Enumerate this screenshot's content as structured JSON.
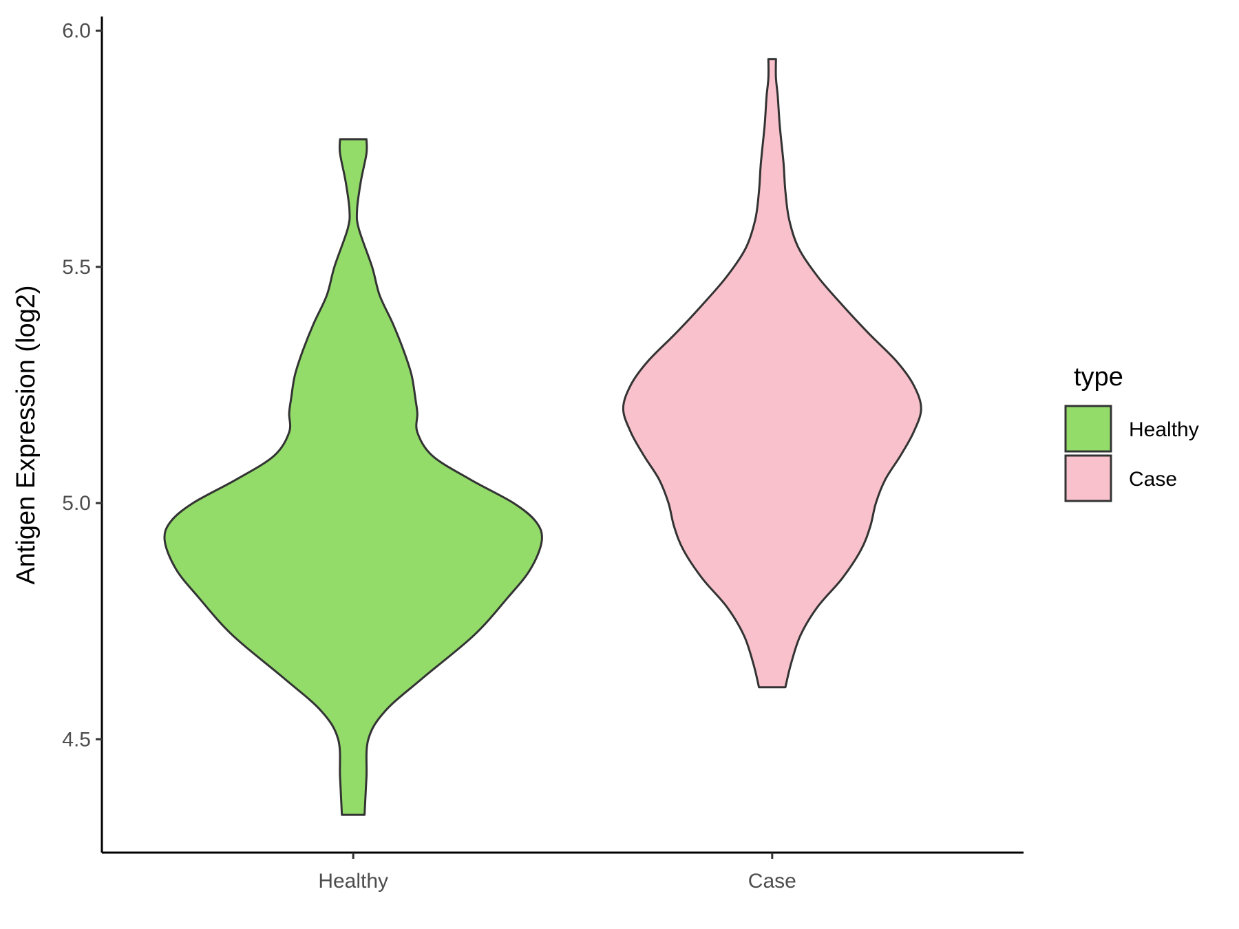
{
  "chart_data": {
    "type": "violin",
    "title": "",
    "xlabel": "",
    "ylabel": "Antigen Expression (log2)",
    "ylim": [
      4.26,
      6.03
    ],
    "yticks": [
      4.5,
      5.0,
      5.5,
      6.0
    ],
    "ytick_labels": [
      "4.5",
      "5.0",
      "5.5",
      "6.0"
    ],
    "grid": false,
    "categories": [
      "Healthy",
      "Case"
    ],
    "legend": {
      "title": "type",
      "placement": "right",
      "entries": [
        {
          "label": "Healthy",
          "color": "#93dc6a"
        },
        {
          "label": "Case",
          "color": "#f8c1cb"
        }
      ]
    },
    "series": [
      {
        "name": "Healthy",
        "color": "#93dc6a",
        "min": 4.34,
        "max": 5.77,
        "density_profile": [
          {
            "y": 4.34,
            "w": 0.06
          },
          {
            "y": 4.42,
            "w": 0.07
          },
          {
            "y": 4.5,
            "w": 0.08
          },
          {
            "y": 4.56,
            "w": 0.17
          },
          {
            "y": 4.63,
            "w": 0.37
          },
          {
            "y": 4.72,
            "w": 0.64
          },
          {
            "y": 4.8,
            "w": 0.82
          },
          {
            "y": 4.86,
            "w": 0.94
          },
          {
            "y": 4.92,
            "w": 1.0
          },
          {
            "y": 4.96,
            "w": 0.97
          },
          {
            "y": 5.0,
            "w": 0.85
          },
          {
            "y": 5.05,
            "w": 0.62
          },
          {
            "y": 5.1,
            "w": 0.42
          },
          {
            "y": 5.15,
            "w": 0.34
          },
          {
            "y": 5.19,
            "w": 0.34
          },
          {
            "y": 5.22,
            "w": 0.33
          },
          {
            "y": 5.27,
            "w": 0.31
          },
          {
            "y": 5.32,
            "w": 0.27
          },
          {
            "y": 5.38,
            "w": 0.21
          },
          {
            "y": 5.44,
            "w": 0.14
          },
          {
            "y": 5.5,
            "w": 0.1
          },
          {
            "y": 5.58,
            "w": 0.03
          },
          {
            "y": 5.62,
            "w": 0.02
          },
          {
            "y": 5.68,
            "w": 0.04
          },
          {
            "y": 5.74,
            "w": 0.07
          },
          {
            "y": 5.77,
            "w": 0.07
          }
        ]
      },
      {
        "name": "Case",
        "color": "#f8c1cb",
        "min": 4.61,
        "max": 5.94,
        "density_profile": [
          {
            "y": 4.61,
            "w": 0.07
          },
          {
            "y": 4.66,
            "w": 0.1
          },
          {
            "y": 4.72,
            "w": 0.15
          },
          {
            "y": 4.78,
            "w": 0.24
          },
          {
            "y": 4.84,
            "w": 0.37
          },
          {
            "y": 4.9,
            "w": 0.47
          },
          {
            "y": 4.95,
            "w": 0.52
          },
          {
            "y": 5.0,
            "w": 0.55
          },
          {
            "y": 5.05,
            "w": 0.6
          },
          {
            "y": 5.1,
            "w": 0.68
          },
          {
            "y": 5.15,
            "w": 0.75
          },
          {
            "y": 5.2,
            "w": 0.79
          },
          {
            "y": 5.25,
            "w": 0.75
          },
          {
            "y": 5.3,
            "w": 0.66
          },
          {
            "y": 5.36,
            "w": 0.51
          },
          {
            "y": 5.42,
            "w": 0.37
          },
          {
            "y": 5.48,
            "w": 0.24
          },
          {
            "y": 5.54,
            "w": 0.14
          },
          {
            "y": 5.6,
            "w": 0.09
          },
          {
            "y": 5.66,
            "w": 0.07
          },
          {
            "y": 5.72,
            "w": 0.06
          },
          {
            "y": 5.8,
            "w": 0.04
          },
          {
            "y": 5.86,
            "w": 0.03
          },
          {
            "y": 5.9,
            "w": 0.02
          },
          {
            "y": 5.94,
            "w": 0.02
          }
        ]
      }
    ]
  }
}
